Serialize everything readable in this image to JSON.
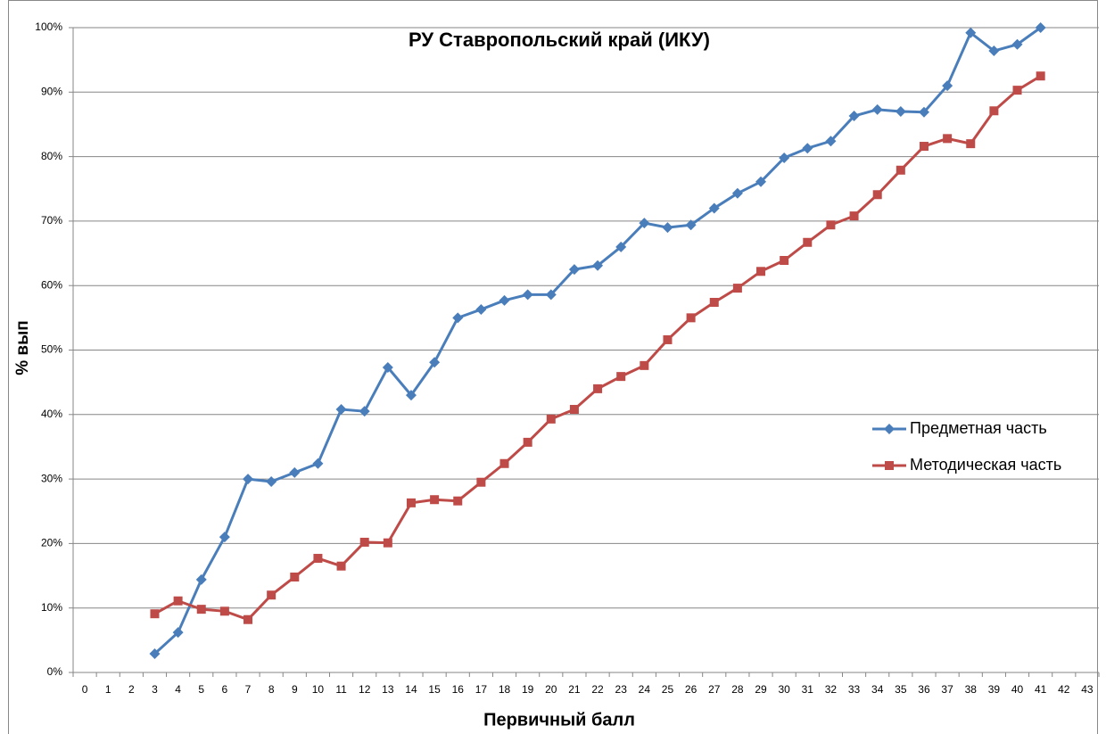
{
  "chart_data": {
    "type": "line",
    "title": "РУ Ставропольский край (ИКУ)",
    "x_label": "Первичный балл",
    "y_label": "% вып",
    "categories": [
      "0",
      "1",
      "2",
      "3",
      "4",
      "5",
      "6",
      "7",
      "8",
      "9",
      "10",
      "11",
      "12",
      "13",
      "14",
      "15",
      "16",
      "17",
      "18",
      "19",
      "20",
      "21",
      "22",
      "23",
      "24",
      "25",
      "26",
      "27",
      "28",
      "29",
      "30",
      "31",
      "32",
      "33",
      "34",
      "35",
      "36",
      "37",
      "38",
      "39",
      "40",
      "41",
      "42",
      "43"
    ],
    "series": [
      {
        "name": "Предметная часть",
        "color": "#4a7ebb",
        "marker": "diamond",
        "values": [
          null,
          null,
          null,
          2.9,
          6.2,
          14.4,
          21,
          30,
          29.6,
          31,
          32.4,
          40.8,
          40.5,
          47.3,
          43,
          48.1,
          55,
          56.3,
          57.7,
          58.6,
          58.6,
          62.5,
          63.1,
          66,
          69.7,
          69,
          69.4,
          72,
          74.3,
          76.1,
          79.8,
          81.3,
          82.4,
          86.3,
          87.3,
          87,
          86.9,
          91,
          99.2,
          96.4,
          97.4,
          100,
          null,
          null
        ]
      },
      {
        "name": "Методическая часть",
        "color": "#be4b48",
        "marker": "square",
        "values": [
          null,
          null,
          null,
          9.1,
          11.1,
          9.8,
          9.5,
          8.2,
          12,
          14.8,
          17.7,
          16.5,
          20.2,
          20.1,
          26.3,
          26.8,
          26.6,
          29.5,
          32.4,
          35.7,
          39.3,
          40.8,
          44,
          45.9,
          47.6,
          51.6,
          55,
          57.4,
          59.6,
          62.2,
          63.9,
          66.7,
          69.4,
          70.8,
          74.1,
          77.9,
          81.6,
          82.8,
          82,
          87.1,
          90.3,
          92.5,
          null,
          null
        ]
      }
    ],
    "ylim": [
      0,
      100
    ],
    "yticks": [
      {
        "value": 0,
        "label": "0%"
      },
      {
        "value": 10,
        "label": "10%"
      },
      {
        "value": 20,
        "label": "20%"
      },
      {
        "value": 30,
        "label": "30%"
      },
      {
        "value": 40,
        "label": "40%"
      },
      {
        "value": 50,
        "label": "50%"
      },
      {
        "value": 60,
        "label": "60%"
      },
      {
        "value": 70,
        "label": "70%"
      },
      {
        "value": 80,
        "label": "80%"
      },
      {
        "value": 90,
        "label": "90%"
      },
      {
        "value": 100,
        "label": "100%"
      }
    ],
    "grid": true,
    "legend": "right"
  }
}
